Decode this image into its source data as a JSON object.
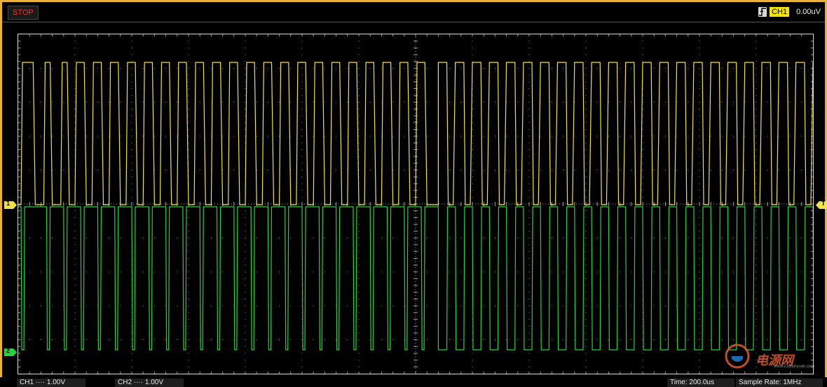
{
  "status": {
    "state_label": "STOP"
  },
  "trigger": {
    "channel_label": "CH1",
    "level": "0.00uV",
    "edge_icon": "rising-edge-icon"
  },
  "markers": {
    "ch1": "1",
    "ch2": "2",
    "trigger": "T"
  },
  "footer": {
    "ch1_scale": "CH1 ···· 1.00V",
    "ch2_scale": "CH2 ···· 1.00V",
    "time_base": "Time: 200.0us",
    "sample_rate": "Sample Rate: 1MHz"
  },
  "watermark": {
    "text": "电源网",
    "url": "www.21dianyuan.com"
  },
  "colors": {
    "ch1": "#f2e24a",
    "ch2": "#27d13a",
    "grid": "#8a8a8a",
    "frame": "#e8b13a",
    "stop": "#ff2a2a"
  },
  "signal": {
    "ch1": {
      "segment1_high_windows": [
        [
          0.05,
          0.3
        ],
        [
          0.45,
          0.6
        ],
        [
          0.75,
          0.9
        ],
        [
          1.0,
          1.2
        ],
        [
          1.3,
          1.5
        ],
        [
          1.6,
          1.8
        ],
        [
          1.9,
          2.1
        ],
        [
          2.2,
          2.4
        ],
        [
          2.5,
          2.7
        ],
        [
          2.8,
          3.0
        ],
        [
          3.1,
          3.3
        ],
        [
          3.4,
          3.6
        ],
        [
          3.7,
          3.9
        ],
        [
          4.0,
          4.2
        ],
        [
          4.3,
          4.5
        ],
        [
          4.6,
          4.8
        ],
        [
          4.9,
          5.1
        ],
        [
          5.2,
          5.4
        ],
        [
          5.5,
          5.7
        ],
        [
          5.8,
          6.0
        ],
        [
          6.1,
          6.3
        ],
        [
          6.4,
          6.6
        ],
        [
          6.7,
          6.9
        ],
        [
          7.0,
          7.2
        ]
      ],
      "segment2_low_windows": [
        [
          7.55,
          7.7
        ],
        [
          7.85,
          8.0
        ],
        [
          8.15,
          8.3
        ],
        [
          8.45,
          8.6
        ],
        [
          8.75,
          8.9
        ],
        [
          9.05,
          9.2
        ],
        [
          9.35,
          9.5
        ],
        [
          9.65,
          9.8
        ],
        [
          9.95,
          10.1
        ],
        [
          10.25,
          10.4
        ],
        [
          10.55,
          10.7
        ],
        [
          10.85,
          11.0
        ],
        [
          11.15,
          11.3
        ],
        [
          11.45,
          11.6
        ],
        [
          11.75,
          11.9
        ],
        [
          12.05,
          12.2
        ],
        [
          12.35,
          12.5
        ],
        [
          12.65,
          12.8
        ],
        [
          12.95,
          13.1
        ],
        [
          13.25,
          13.4
        ],
        [
          13.55,
          13.7
        ],
        [
          13.85,
          14.0
        ]
      ]
    },
    "ch2": {
      "segment1_dip_windows": [
        [
          0.05,
          0.1
        ],
        [
          0.5,
          0.55
        ],
        [
          0.8,
          0.85
        ],
        [
          1.1,
          1.15
        ],
        [
          1.4,
          1.45
        ],
        [
          1.7,
          1.75
        ],
        [
          2.0,
          2.05
        ],
        [
          2.3,
          2.35
        ],
        [
          2.6,
          2.65
        ],
        [
          2.9,
          2.95
        ],
        [
          3.2,
          3.25
        ],
        [
          3.5,
          3.55
        ],
        [
          3.8,
          3.85
        ],
        [
          4.1,
          4.15
        ],
        [
          4.4,
          4.45
        ],
        [
          4.7,
          4.75
        ],
        [
          5.0,
          5.05
        ],
        [
          5.3,
          5.35
        ],
        [
          5.6,
          5.65
        ],
        [
          5.9,
          5.95
        ],
        [
          6.2,
          6.25
        ],
        [
          6.5,
          6.55
        ],
        [
          6.8,
          6.85
        ],
        [
          7.1,
          7.15
        ]
      ],
      "segment2_high_windows": [
        [
          7.55,
          7.7
        ],
        [
          7.85,
          8.0
        ],
        [
          8.15,
          8.3
        ],
        [
          8.45,
          8.6
        ],
        [
          8.75,
          8.9
        ],
        [
          9.05,
          9.2
        ],
        [
          9.35,
          9.5
        ],
        [
          9.65,
          9.8
        ],
        [
          9.95,
          10.1
        ],
        [
          10.25,
          10.4
        ],
        [
          10.55,
          10.7
        ],
        [
          10.85,
          11.0
        ],
        [
          11.15,
          11.3
        ],
        [
          11.45,
          11.6
        ],
        [
          11.75,
          11.9
        ],
        [
          12.05,
          12.2
        ],
        [
          12.35,
          12.5
        ],
        [
          12.65,
          12.8
        ],
        [
          12.95,
          13.1
        ],
        [
          13.25,
          13.4
        ],
        [
          13.55,
          13.7
        ],
        [
          13.85,
          14.0
        ]
      ]
    }
  }
}
